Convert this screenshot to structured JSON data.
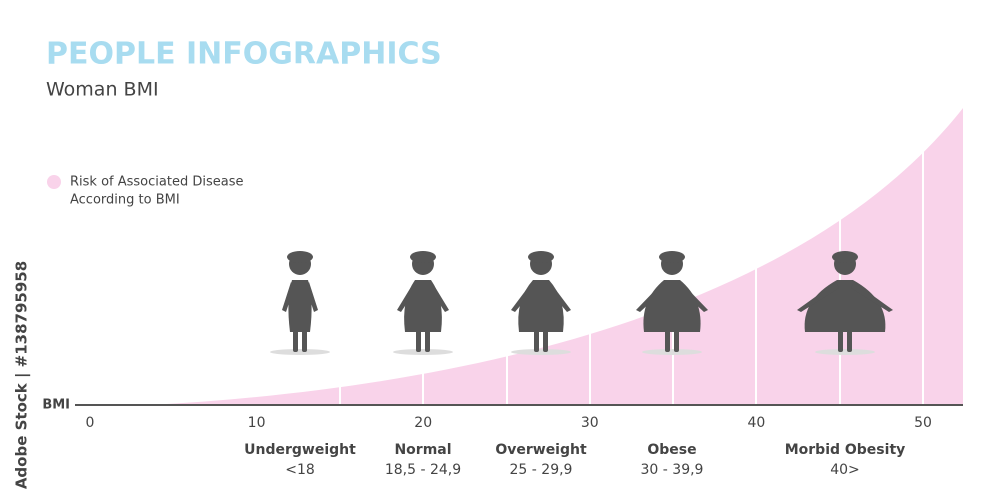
{
  "header": {
    "title": "PEOPLE INFOGRAPHICS",
    "subtitle": "Woman BMI",
    "watermark": "Adobe Stock | #138795958"
  },
  "chart_data": {
    "type": "area",
    "legend": [
      "Risk of Associated Disease",
      "According to BMI"
    ],
    "legend_color": "#f9d3ea",
    "xlabel": "BMI",
    "xlim": [
      -0.9,
      52.4
    ],
    "xticks": [
      0,
      10,
      20,
      30,
      40,
      50
    ],
    "categories": [
      {
        "name": "Undergweight",
        "range": "<18"
      },
      {
        "name": "Normal",
        "range": "18,5 - 24,9"
      },
      {
        "name": "Overweight",
        "range": "25 - 29,9"
      },
      {
        "name": "Obese",
        "range": "30 - 39,9"
      },
      {
        "name": "Morbid Obesity",
        "range": "40>"
      }
    ]
  }
}
